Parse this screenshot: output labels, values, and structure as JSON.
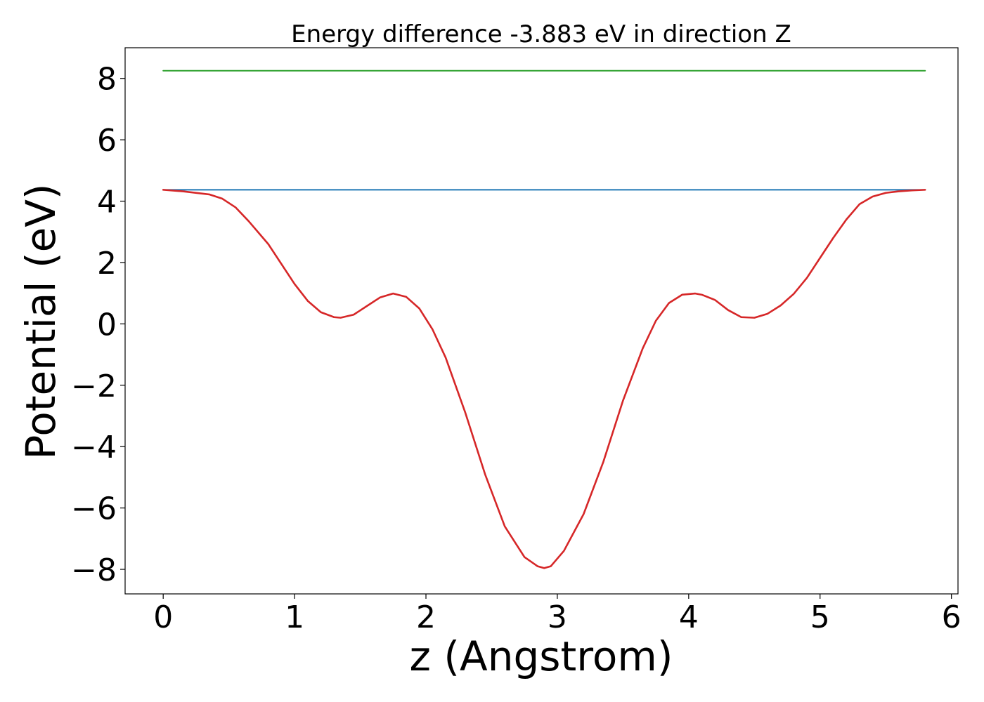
{
  "chart_data": {
    "type": "line",
    "title": "Energy difference -3.883 eV in direction Z",
    "xlabel": "z (Angstrom)",
    "ylabel": "Potential (eV)",
    "xlim": [
      -0.29,
      6.05
    ],
    "ylim": [
      -8.8,
      9.0
    ],
    "xticks": [
      0,
      1,
      2,
      3,
      4,
      5,
      6
    ],
    "xtick_labels": [
      "0",
      "1",
      "2",
      "3",
      "4",
      "5",
      "6"
    ],
    "yticks": [
      8,
      6,
      4,
      2,
      0,
      -2,
      -4,
      -6,
      -8
    ],
    "ytick_labels": [
      "8",
      "6",
      "4",
      "2",
      "0",
      "−2",
      "−4",
      "−6",
      "−8"
    ],
    "grid": false,
    "series": [
      {
        "color": "#2ca02c",
        "x": [
          0,
          5.8
        ],
        "y": [
          8.25,
          8.25
        ]
      },
      {
        "color": "#1f77b4",
        "x": [
          0,
          5.8
        ],
        "y": [
          4.37,
          4.37
        ]
      },
      {
        "color": "#d62728",
        "x": [
          0,
          0.15,
          0.35,
          0.45,
          0.55,
          0.65,
          0.8,
          1.0,
          1.1,
          1.2,
          1.3,
          1.35,
          1.45,
          1.55,
          1.65,
          1.75,
          1.85,
          1.95,
          2.05,
          2.15,
          2.3,
          2.45,
          2.6,
          2.75,
          2.85,
          2.9,
          2.95,
          3.05,
          3.2,
          3.35,
          3.5,
          3.65,
          3.75,
          3.85,
          3.95,
          4.05,
          4.1,
          4.2,
          4.3,
          4.4,
          4.5,
          4.6,
          4.7,
          4.8,
          4.9,
          5.0,
          5.1,
          5.2,
          5.3,
          5.4,
          5.5,
          5.6,
          5.7,
          5.8
        ],
        "y": [
          4.37,
          4.32,
          4.22,
          4.08,
          3.8,
          3.35,
          2.6,
          1.3,
          0.75,
          0.38,
          0.22,
          0.2,
          0.3,
          0.58,
          0.86,
          0.99,
          0.88,
          0.5,
          -0.18,
          -1.1,
          -2.9,
          -4.9,
          -6.6,
          -7.6,
          -7.9,
          -7.96,
          -7.9,
          -7.4,
          -6.2,
          -4.5,
          -2.5,
          -0.8,
          0.1,
          0.68,
          0.95,
          0.99,
          0.95,
          0.78,
          0.45,
          0.22,
          0.2,
          0.33,
          0.6,
          0.98,
          1.5,
          2.15,
          2.8,
          3.4,
          3.9,
          4.15,
          4.27,
          4.32,
          4.35,
          4.37
        ]
      }
    ]
  }
}
